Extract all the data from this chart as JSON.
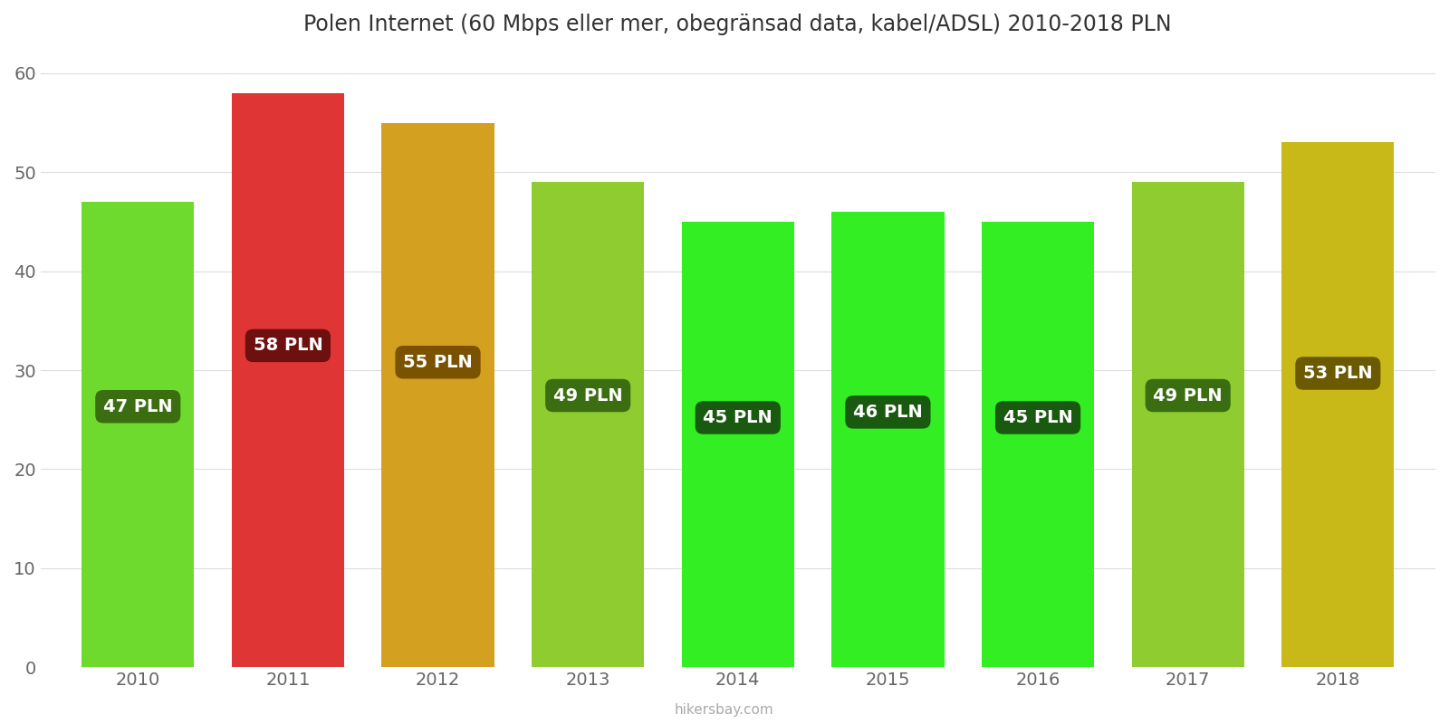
{
  "years": [
    2010,
    2011,
    2012,
    2013,
    2014,
    2015,
    2016,
    2017,
    2018
  ],
  "values": [
    47,
    58,
    55,
    49,
    45,
    46,
    45,
    49,
    53
  ],
  "bar_colors": [
    "#6fda2e",
    "#e03535",
    "#d4a020",
    "#8fcc30",
    "#33ee22",
    "#33ee22",
    "#33ee22",
    "#8fcc30",
    "#c8b818"
  ],
  "label_bg_colors": [
    "#3a6e10",
    "#6e1010",
    "#7a5200",
    "#3a6e10",
    "#1a5a10",
    "#1a5a10",
    "#1a5a10",
    "#3a6e10",
    "#6b5a00"
  ],
  "title": "Polen Internet (60 Mbps eller mer, obegränsad data, kabel/ADSL) 2010-2018 PLN",
  "ylim": [
    0,
    62
  ],
  "yticks": [
    0,
    10,
    20,
    30,
    40,
    50,
    60
  ],
  "watermark": "hikersbay.com",
  "background_color": "#ffffff"
}
